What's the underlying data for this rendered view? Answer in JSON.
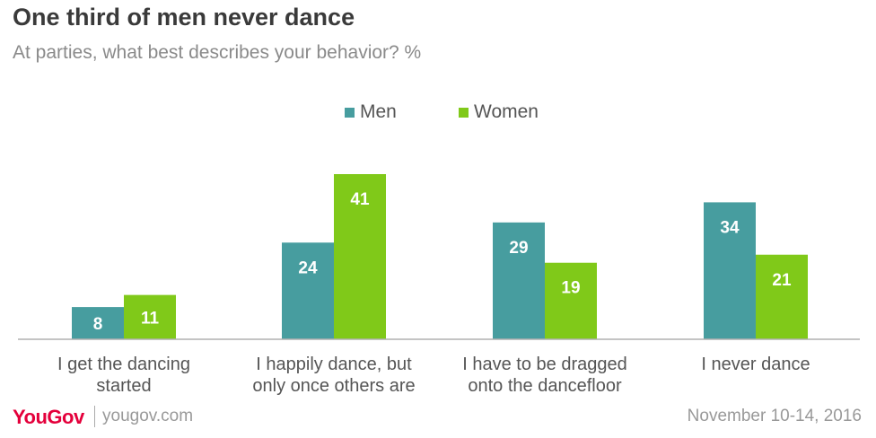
{
  "header": {
    "title": "One third of men never dance",
    "subtitle": "At parties, what best describes your behavior? %"
  },
  "footer": {
    "logo": "YouGov",
    "url": "yougov.com",
    "date": "November 10-14, 2016"
  },
  "colors": {
    "men": "#479d9f",
    "women": "#80c919",
    "axis": "#b0b0b0",
    "category_text": "#555555",
    "value_text": "#ffffff"
  },
  "chart_data": {
    "type": "bar",
    "title": "One third of men never dance",
    "subtitle": "At parties, what best describes your behavior? %",
    "categories": [
      [
        "I get the dancing",
        "started"
      ],
      [
        "I happily dance, but",
        "only once others are"
      ],
      [
        "I have to be dragged",
        "onto the dancefloor"
      ],
      [
        "I never dance"
      ]
    ],
    "series": [
      {
        "name": "Men",
        "values": [
          8,
          24,
          29,
          34
        ]
      },
      {
        "name": "Women",
        "values": [
          11,
          41,
          19,
          21
        ]
      }
    ],
    "ylim": [
      0,
      41
    ],
    "grid": false,
    "legend": "top-center",
    "data_labels": true
  }
}
